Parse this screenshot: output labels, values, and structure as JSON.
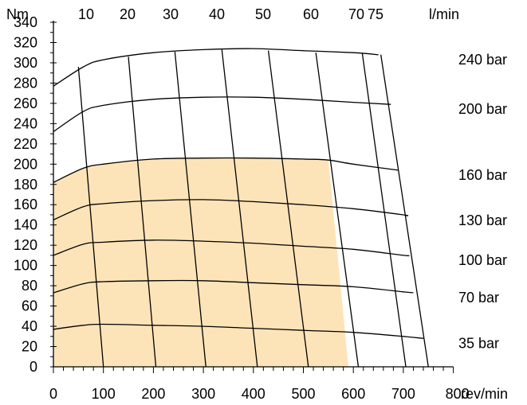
{
  "chart_data": {
    "type": "line",
    "title": "",
    "xlabel": "rev/min",
    "ylabel": "Nm",
    "top_axis_label": "l/min",
    "xlim": [
      0,
      800
    ],
    "ylim": [
      0,
      340
    ],
    "x_ticks": [
      "0",
      "100",
      "200",
      "300",
      "400",
      "500",
      "600",
      "700",
      "800"
    ],
    "y_ticks": [
      "0",
      "20",
      "40",
      "60",
      "80",
      "100",
      "120",
      "140",
      "160",
      "180",
      "200",
      "220",
      "240",
      "260",
      "280",
      "300",
      "320",
      "340"
    ],
    "flow_ticks": [
      "10",
      "20",
      "30",
      "40",
      "50",
      "60",
      "70",
      "75"
    ],
    "fill_color": "#fde4b8",
    "continuous_region": {
      "upper_curve": "160 bar",
      "right_boundary": [
        [
          550,
          204
        ],
        [
          590,
          0
        ]
      ]
    },
    "series": [
      {
        "name": "35 bar",
        "points": [
          [
            0,
            37
          ],
          [
            60,
            41
          ],
          [
            100,
            42
          ],
          [
            200,
            41
          ],
          [
            300,
            40
          ],
          [
            400,
            38
          ],
          [
            500,
            36
          ],
          [
            600,
            34
          ],
          [
            700,
            30
          ],
          [
            740,
            28
          ]
        ]
      },
      {
        "name": "70 bar",
        "points": [
          [
            0,
            73
          ],
          [
            60,
            82
          ],
          [
            100,
            84
          ],
          [
            200,
            85
          ],
          [
            300,
            85
          ],
          [
            400,
            83
          ],
          [
            500,
            81
          ],
          [
            600,
            79
          ],
          [
            700,
            74
          ],
          [
            720,
            73
          ]
        ]
      },
      {
        "name": "100 bar",
        "points": [
          [
            0,
            110
          ],
          [
            60,
            121
          ],
          [
            100,
            123
          ],
          [
            200,
            125
          ],
          [
            300,
            124
          ],
          [
            400,
            122
          ],
          [
            500,
            119
          ],
          [
            600,
            116
          ],
          [
            700,
            110
          ],
          [
            710,
            110
          ]
        ]
      },
      {
        "name": "130 bar",
        "points": [
          [
            0,
            145
          ],
          [
            60,
            158
          ],
          [
            100,
            161
          ],
          [
            200,
            164
          ],
          [
            300,
            165
          ],
          [
            400,
            163
          ],
          [
            500,
            160
          ],
          [
            600,
            156
          ],
          [
            700,
            150
          ],
          [
            705,
            149
          ]
        ]
      },
      {
        "name": "160 bar",
        "points": [
          [
            0,
            182
          ],
          [
            60,
            196
          ],
          [
            100,
            200
          ],
          [
            200,
            205
          ],
          [
            300,
            206
          ],
          [
            400,
            206
          ],
          [
            500,
            205
          ],
          [
            550,
            204
          ],
          [
            600,
            200
          ],
          [
            690,
            194
          ]
        ]
      },
      {
        "name": "200 bar",
        "points": [
          [
            0,
            232
          ],
          [
            60,
            252
          ],
          [
            100,
            258
          ],
          [
            200,
            264
          ],
          [
            300,
            266
          ],
          [
            400,
            266
          ],
          [
            500,
            264
          ],
          [
            600,
            261
          ],
          [
            675,
            259
          ]
        ]
      },
      {
        "name": "240 bar",
        "points": [
          [
            0,
            277
          ],
          [
            60,
            296
          ],
          [
            100,
            303
          ],
          [
            200,
            310
          ],
          [
            300,
            313
          ],
          [
            400,
            314
          ],
          [
            500,
            312
          ],
          [
            600,
            310
          ],
          [
            650,
            308
          ]
        ]
      }
    ],
    "flow_lines": [
      {
        "label": "10",
        "points": [
          [
            50,
            296
          ],
          [
            100,
            0
          ]
        ]
      },
      {
        "label": "20",
        "points": [
          [
            150,
            306
          ],
          [
            205,
            0
          ]
        ]
      },
      {
        "name": "30",
        "label": "30",
        "points": [
          [
            243,
            311
          ],
          [
            305,
            0
          ]
        ]
      },
      {
        "label": "40",
        "points": [
          [
            337,
            313
          ],
          [
            408,
            0
          ]
        ]
      },
      {
        "label": "50",
        "points": [
          [
            430,
            312
          ],
          [
            510,
            0
          ]
        ]
      },
      {
        "label": "60",
        "points": [
          [
            525,
            310
          ],
          [
            610,
            0
          ]
        ]
      },
      {
        "label": "70",
        "points": [
          [
            618,
            309
          ],
          [
            705,
            0
          ]
        ]
      },
      {
        "label": "75",
        "points": [
          [
            655,
            308
          ],
          [
            750,
            0
          ]
        ]
      }
    ],
    "grid": false,
    "legend": "right"
  }
}
